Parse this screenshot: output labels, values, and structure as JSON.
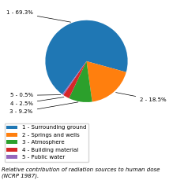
{
  "chart_data": {
    "type": "pie",
    "categories": [
      "1 - Surrounding ground",
      "2 - Springs and wells",
      "3 - Atmosphere",
      "4 - Building material",
      "5 - Public water"
    ],
    "values": [
      69.3,
      18.5,
      9.2,
      2.5,
      0.5
    ],
    "value_labels": [
      "1 - 69.3%",
      "2 - 18.5%",
      "3 - 9.2%",
      "4 - 2.5%",
      "5 - 0.5%"
    ],
    "data_labels": true,
    "legend": "lower left",
    "caption": "Relative contribution of radiation sources to human dose (NCRP 1987)."
  }
}
